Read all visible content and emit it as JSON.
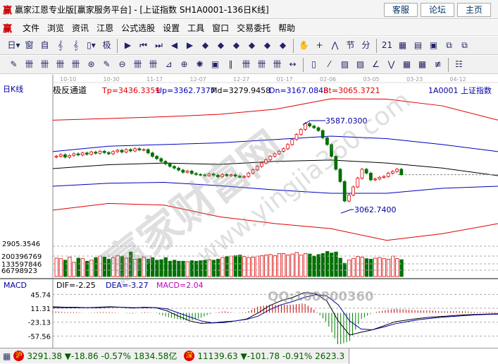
{
  "window": {
    "title": "赢家江恩专业版[赢家服务平台] - [上证指数  SH1A0001-136日K线]",
    "logo": "赢",
    "buttons": [
      "客服",
      "论坛",
      "主页"
    ]
  },
  "menu": [
    "文件",
    "浏览",
    "资讯",
    "江恩",
    "公式选股",
    "设置",
    "工具",
    "窗口",
    "交易委托",
    "帮助"
  ],
  "toolbar1": [
    "日▾",
    "窗",
    "自",
    "𝄞",
    "𝄞",
    "▯▾",
    "极",
    "▶",
    "⏮",
    "⏭",
    "◀",
    "▶",
    "◆",
    "◆",
    "◆",
    "◆",
    "◆",
    "◆",
    "✋",
    "+",
    "⋀",
    "节",
    "分",
    "21",
    "▦",
    "▤",
    "▣",
    "⧉",
    "⧉"
  ],
  "toolbar2": [
    "✎",
    "卌",
    "卌",
    "卌",
    "卌",
    "⊛",
    "✎",
    "⊖",
    "卌",
    "卌",
    "⊿",
    "⊕",
    "✺",
    "▣",
    "∥",
    "卌",
    "卌",
    "卌",
    "↔",
    "▯",
    "⁄",
    "▨",
    "▨",
    "∠",
    "⋁",
    "▦",
    "▦",
    "≢",
    "☷"
  ],
  "dates": [
    "10-10",
    "10-30",
    "11-17",
    "12-07",
    "12-27",
    "01-17",
    "02-06",
    "03-05",
    "03-23",
    "04-12"
  ],
  "chart_header": {
    "period": "日K线",
    "indicator": "极反通道",
    "tp": "Tp=3436.3359",
    "up": "Up=3362.7377",
    "md": "Md=3279.9458",
    "dn": "Dn=3167.0848",
    "bt": "Bt=3065.3721",
    "symbol": "1A0001  上证指数"
  },
  "annotations": {
    "high": "3587.0300",
    "low": "3062.7400",
    "axis_low": "2905.3546"
  },
  "volume_labels": [
    "200396769",
    "133597846",
    "66798923"
  ],
  "macd": {
    "title": "MACD",
    "dif": "DIF=-2.25",
    "dea": "DEA=-3.27",
    "macd": "MACD=2.04",
    "ticks": [
      "45.74",
      "11.31",
      "-23.13",
      "-57.56"
    ]
  },
  "watermark": {
    "text": "赢家财富网",
    "url": "www.yingjia360.com",
    "qq": "QQ:100800360"
  },
  "status": {
    "sh_icon": "沪",
    "sh": "3291.38 ▼-18.86 -0.57% 1834.58亿",
    "sz_icon": "深",
    "sz": "11139.63 ▼-101.78 -0.91% 2623.3"
  },
  "colors": {
    "up": "#e00000",
    "down": "#007000",
    "band_outer": "#e00000",
    "band_inner": "#0000c0",
    "mid": "#000000"
  },
  "chart_data": {
    "type": "candlestick",
    "closes": [
      3400,
      3410,
      3395,
      3405,
      3415,
      3408,
      3420,
      3412,
      3425,
      3418,
      3430,
      3422,
      3415,
      3428,
      3436,
      3425,
      3440,
      3432,
      3445,
      3438,
      3440,
      3420,
      3400,
      3386,
      3370,
      3355,
      3340,
      3330,
      3318,
      3305,
      3312,
      3298,
      3292,
      3290,
      3285,
      3295,
      3288,
      3278,
      3292,
      3285,
      3290,
      3282,
      3276,
      3280,
      3300,
      3320,
      3340,
      3360,
      3380,
      3400,
      3415,
      3430,
      3445,
      3470,
      3500,
      3530,
      3560,
      3595,
      3580,
      3570,
      3553,
      3510,
      3470,
      3400,
      3323,
      3250,
      3134,
      3170,
      3218,
      3270,
      3323,
      3300,
      3260,
      3265,
      3275,
      3280,
      3300,
      3310,
      3323,
      3291
    ],
    "volumes_m": [
      180,
      175,
      160,
      190,
      140,
      180,
      175,
      150,
      160,
      185,
      200,
      190,
      170,
      185,
      205,
      200,
      180,
      240,
      170,
      175,
      190,
      170,
      185,
      160,
      165,
      185,
      150,
      160,
      150,
      150,
      145,
      155,
      150,
      155,
      160,
      165,
      160,
      170,
      185,
      195,
      200,
      205,
      210,
      195,
      185,
      190,
      200,
      205,
      210,
      215,
      205,
      225,
      225,
      210,
      220,
      235,
      210,
      225,
      220,
      200,
      215,
      225,
      245,
      230,
      240,
      180,
      130,
      160,
      175,
      195,
      190,
      175,
      170,
      180,
      185,
      175,
      170,
      200,
      175,
      165
    ],
    "band_upper_red": [
      3615,
      3625,
      3635,
      3650,
      3680,
      3742,
      3740,
      3700,
      3615
    ],
    "band_upper_blue": [
      3428,
      3460,
      3470,
      3480,
      3500,
      3520,
      3505,
      3470,
      3428
    ],
    "band_mid": [
      3327,
      3350,
      3360,
      3352,
      3370,
      3378,
      3360,
      3330,
      3285
    ],
    "band_lower_blue": [
      3222,
      3240,
      3245,
      3225,
      3200,
      3180,
      3180,
      3210,
      3222
    ],
    "band_lower_red": [
      3080,
      3120,
      3110,
      3040,
      3000,
      2970,
      2900,
      2940,
      3000
    ],
    "last_price": 3291,
    "dif": [
      15,
      14,
      14,
      13,
      14,
      15,
      14,
      12,
      14,
      13,
      5,
      -8,
      -20,
      -26,
      -25,
      -22,
      -20,
      -15,
      0,
      18,
      30,
      38,
      50,
      48,
      30,
      -20,
      -55,
      -48,
      -42,
      -32,
      -22,
      -18,
      -14,
      -11,
      -9,
      -7,
      -5,
      -4,
      -3,
      -2.25
    ],
    "dea": [
      13,
      13,
      13,
      13,
      13,
      14,
      14,
      13,
      13,
      13,
      10,
      0,
      -10,
      -20,
      -25,
      -24,
      -20,
      -16,
      -8,
      8,
      20,
      28,
      38,
      45,
      42,
      20,
      -20,
      -40,
      -42,
      -35,
      -27,
      -22,
      -17,
      -14,
      -11,
      -9,
      -7,
      -5,
      -4,
      -3.27
    ]
  }
}
